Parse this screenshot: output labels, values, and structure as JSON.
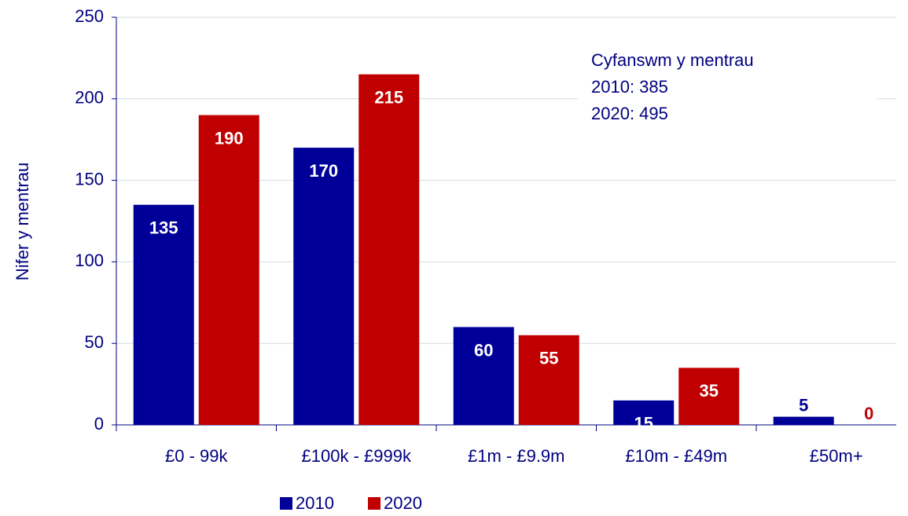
{
  "chart_data": {
    "type": "bar",
    "categories": [
      "£0 - 99k",
      "£100k - £999k",
      "£1m - £9.9m",
      "£10m - £49m",
      "£50m+"
    ],
    "series": [
      {
        "name": "2010",
        "color": "#000099",
        "values": [
          135,
          170,
          60,
          15,
          5
        ]
      },
      {
        "name": "2020",
        "color": "#c00000",
        "values": [
          190,
          215,
          55,
          35,
          0
        ]
      }
    ],
    "ylabel": "Nifer y mentrau",
    "ylim": [
      0,
      250
    ],
    "yticks": [
      0,
      50,
      100,
      150,
      200,
      250
    ],
    "grid": true,
    "annotations": [
      "Cyfanswm y mentrau",
      "2010: 385",
      "2020: 495"
    ],
    "legend": "bottom"
  }
}
